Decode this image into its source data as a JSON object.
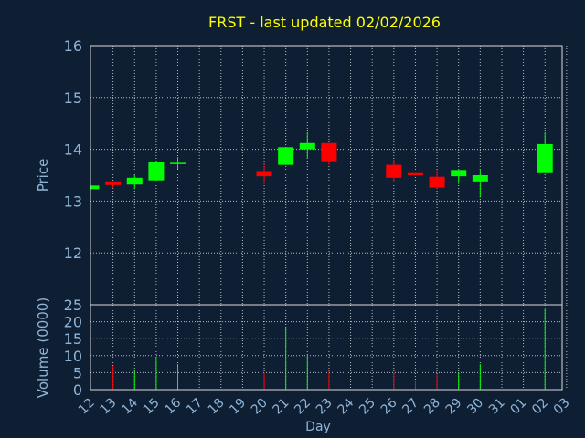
{
  "chart_data": {
    "type": "candlestick",
    "title": "FRST - last updated 02/02/2026",
    "xlabel": "Day",
    "colors": {
      "background": "#0f1f33",
      "up": "#00ff00",
      "down": "#ff0000",
      "title": "#ffff00",
      "axis_text": "#8fb4d8",
      "frame": "#d9d9d9"
    },
    "price_panel": {
      "ylabel": "Price",
      "ylim": [
        11.0,
        16.0
      ],
      "yticks": [
        12,
        13,
        14,
        15,
        16
      ],
      "grid": true
    },
    "volume_panel": {
      "ylabel": "Volume (0000)",
      "ylim": [
        0,
        25
      ],
      "yticks": [
        0,
        5,
        10,
        15,
        20,
        25
      ]
    },
    "x_tick_labels": [
      "12",
      "13",
      "14",
      "15",
      "16",
      "17",
      "18",
      "19",
      "20",
      "21",
      "22",
      "23",
      "24",
      "25",
      "26",
      "27",
      "28",
      "29",
      "30",
      "31",
      "01",
      "02",
      "03"
    ],
    "candles": [
      {
        "day": 0.0,
        "open": 13.23,
        "close": 13.3,
        "high": 13.3,
        "low": 13.23,
        "volume": 0
      },
      {
        "day": 1.0,
        "open": 13.38,
        "close": 13.31,
        "high": 13.38,
        "low": 13.25,
        "volume": 7
      },
      {
        "day": 2.0,
        "open": 13.32,
        "close": 13.45,
        "high": 13.5,
        "low": 13.23,
        "volume": 5.5
      },
      {
        "day": 3.0,
        "open": 13.4,
        "close": 13.76,
        "high": 13.78,
        "low": 13.4,
        "volume": 9.5
      },
      {
        "day": 4.0,
        "open": 13.72,
        "close": 13.74,
        "high": 13.85,
        "low": 13.62,
        "volume": 7.5
      },
      {
        "day": 8.0,
        "open": 13.58,
        "close": 13.48,
        "high": 13.72,
        "low": 13.33,
        "volume": 5
      },
      {
        "day": 9.0,
        "open": 13.7,
        "close": 14.04,
        "high": 14.04,
        "low": 13.7,
        "volume": 18
      },
      {
        "day": 10.0,
        "open": 14.0,
        "close": 14.12,
        "high": 14.33,
        "low": 13.82,
        "volume": 10
      },
      {
        "day": 11.0,
        "open": 14.12,
        "close": 13.77,
        "high": 14.12,
        "low": 13.7,
        "volume": 5.5
      },
      {
        "day": 14.0,
        "open": 13.7,
        "close": 13.45,
        "high": 13.8,
        "low": 13.38,
        "volume": 5
      },
      {
        "day": 15.0,
        "open": 13.54,
        "close": 13.5,
        "high": 13.54,
        "low": 13.5,
        "volume": 2.5
      },
      {
        "day": 16.0,
        "open": 13.47,
        "close": 13.26,
        "high": 13.6,
        "low": 13.24,
        "volume": 4.5
      },
      {
        "day": 17.0,
        "open": 13.48,
        "close": 13.6,
        "high": 13.6,
        "low": 13.33,
        "volume": 5
      },
      {
        "day": 18.0,
        "open": 13.38,
        "close": 13.5,
        "high": 13.62,
        "low": 13.07,
        "volume": 7.5
      },
      {
        "day": 21.0,
        "open": 13.54,
        "close": 14.1,
        "high": 14.33,
        "low": 13.54,
        "volume": 24
      }
    ]
  }
}
